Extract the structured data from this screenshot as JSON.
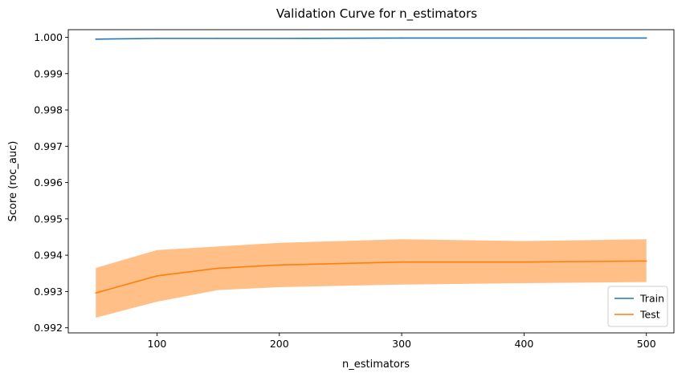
{
  "chart_data": {
    "type": "line",
    "title": "Validation Curve for n_estimators",
    "xlabel": "n_estimators",
    "ylabel": "Score (roc_auc)",
    "x": [
      50,
      100,
      150,
      200,
      300,
      400,
      500
    ],
    "xlim": [
      27.5,
      522.5
    ],
    "ylim": [
      0.99186,
      1.00021
    ],
    "xticks": [
      100,
      200,
      300,
      400,
      500
    ],
    "xtick_labels": [
      "100",
      "200",
      "300",
      "400",
      "500"
    ],
    "yticks": [
      0.992,
      0.993,
      0.994,
      0.995,
      0.996,
      0.997,
      0.998,
      0.999,
      1.0
    ],
    "ytick_labels": [
      "0.992",
      "0.993",
      "0.994",
      "0.995",
      "0.996",
      "0.997",
      "0.998",
      "0.999",
      "1.000"
    ],
    "grid": false,
    "legend_position": "lower-right",
    "series": [
      {
        "name": "Train",
        "color": "#1f77b4",
        "values": [
          0.99995,
          0.99997,
          0.99997,
          0.99997,
          0.99998,
          0.99998,
          0.99998
        ]
      },
      {
        "name": "Test",
        "color": "#ff7f0e",
        "band_color": "#ffbf86",
        "values": [
          0.99296,
          0.99343,
          0.99364,
          0.99373,
          0.99381,
          0.99381,
          0.99384
        ],
        "upper": [
          0.99365,
          0.99414,
          0.99424,
          0.99434,
          0.99444,
          0.99439,
          0.99444
        ],
        "lower": [
          0.99228,
          0.99272,
          0.99304,
          0.99312,
          0.99319,
          0.99323,
          0.99326
        ]
      }
    ]
  }
}
